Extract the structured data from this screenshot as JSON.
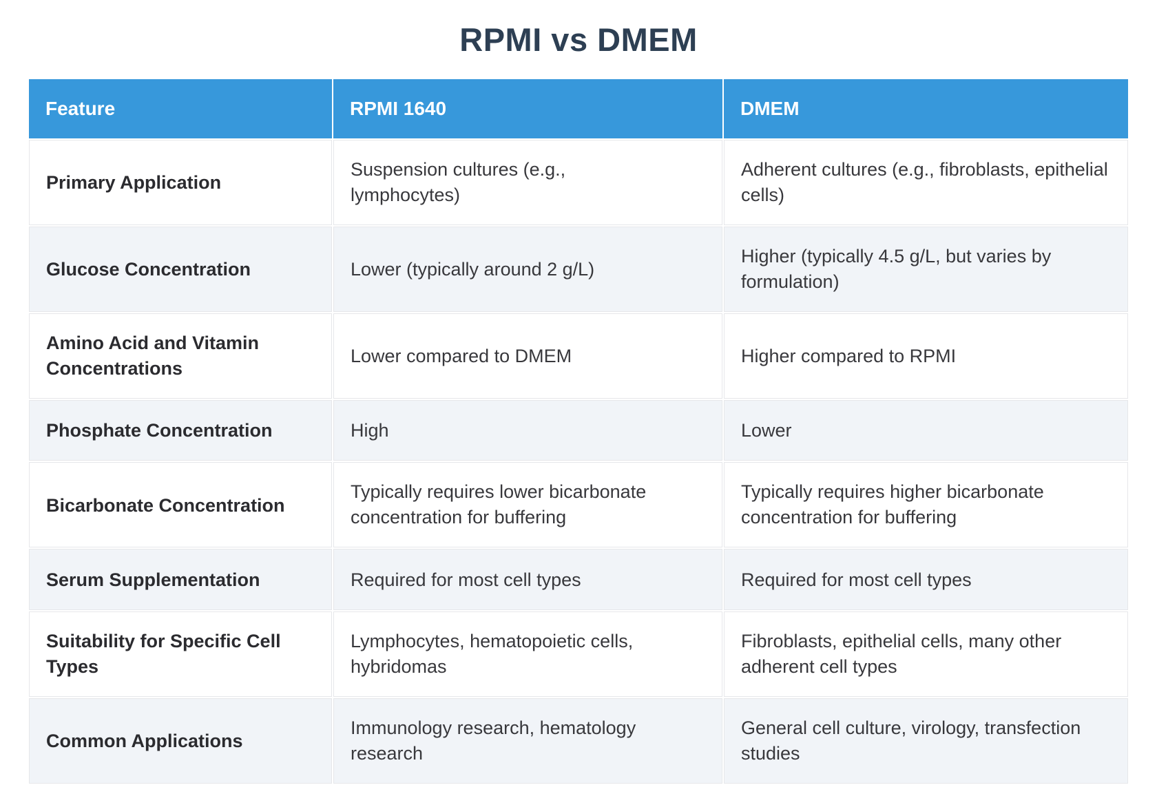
{
  "page": {
    "title": "RPMI vs DMEM"
  },
  "colors": {
    "header_bg": "#3798db",
    "header_text": "#ffffff",
    "title_text": "#2d3f53",
    "row_alt_bg": "#f1f4f8",
    "row_bg": "#ffffff",
    "cell_border": "#e6e7ea",
    "body_text": "#38383c"
  },
  "table": {
    "columns": [
      {
        "label": "Feature"
      },
      {
        "label": "RPMI 1640"
      },
      {
        "label": "DMEM"
      }
    ],
    "rows": [
      {
        "feature": "Primary Application",
        "rpmi": "Suspension cultures (e.g., lymphocytes)",
        "dmem": "Adherent cultures (e.g., fibroblasts, epithelial cells)"
      },
      {
        "feature": "Glucose Concentration",
        "rpmi": "Lower (typically around 2 g/L)",
        "dmem": "Higher (typically 4.5 g/L, but varies by formulation)"
      },
      {
        "feature": "Amino Acid and Vitamin Concentrations",
        "rpmi": "Lower compared to DMEM",
        "dmem": "Higher compared to RPMI"
      },
      {
        "feature": "Phosphate Concentration",
        "rpmi": "High",
        "dmem": "Lower"
      },
      {
        "feature": "Bicarbonate Concentration",
        "rpmi": "Typically requires lower bicarbonate concentration for buffering",
        "dmem": "Typically requires higher bicarbonate concentration for buffering"
      },
      {
        "feature": "Serum Supplementation",
        "rpmi": "Required for most cell types",
        "dmem": "Required for most cell types"
      },
      {
        "feature": "Suitability for Specific Cell Types",
        "rpmi": "Lymphocytes, hematopoietic cells, hybridomas",
        "dmem": "Fibroblasts, epithelial cells, many other adherent cell types"
      },
      {
        "feature": "Common Applications",
        "rpmi": "Immunology research, hematology research",
        "dmem": "General cell culture, virology, transfection studies"
      }
    ]
  }
}
